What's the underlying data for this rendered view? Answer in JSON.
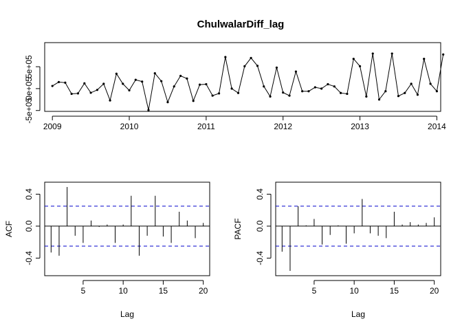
{
  "chart_data": [
    {
      "type": "line",
      "title": "ChulwalarDiff_lag",
      "xlabel": "",
      "ylabel": "",
      "xlim": [
        2008.9,
        2014.05
      ],
      "ylim": [
        -520000,
        1050000
      ],
      "x_ticks": [
        2009,
        2010,
        2011,
        2012,
        2013,
        2014
      ],
      "y_ticks": [
        -500000,
        0,
        500000
      ],
      "y_tick_labels": [
        "-5e+05",
        "0e+05",
        "5e+05"
      ],
      "series": [
        {
          "values": [
            [
              2009.0,
              60000
            ],
            [
              2009.083,
              150000
            ],
            [
              2009.167,
              135000
            ],
            [
              2009.25,
              -120000
            ],
            [
              2009.333,
              -110000
            ],
            [
              2009.417,
              120000
            ],
            [
              2009.5,
              -95000
            ],
            [
              2009.583,
              -30000
            ],
            [
              2009.667,
              110000
            ],
            [
              2009.75,
              -270000
            ],
            [
              2009.833,
              340000
            ],
            [
              2009.917,
              110000
            ],
            [
              2010.0,
              -40000
            ],
            [
              2010.083,
              200000
            ],
            [
              2010.167,
              160000
            ],
            [
              2010.25,
              -490000
            ],
            [
              2010.333,
              350000
            ],
            [
              2010.417,
              170000
            ],
            [
              2010.5,
              -310000
            ],
            [
              2010.583,
              50000
            ],
            [
              2010.667,
              290000
            ],
            [
              2010.75,
              230000
            ],
            [
              2010.833,
              -280000
            ],
            [
              2010.917,
              90000
            ],
            [
              2011.0,
              100000
            ],
            [
              2011.083,
              -160000
            ],
            [
              2011.167,
              -110000
            ],
            [
              2011.25,
              720000
            ],
            [
              2011.333,
              0
            ],
            [
              2011.417,
              -100000
            ],
            [
              2011.5,
              510000
            ],
            [
              2011.583,
              700000
            ],
            [
              2011.667,
              520000
            ],
            [
              2011.75,
              50000
            ],
            [
              2011.833,
              -180000
            ],
            [
              2011.917,
              480000
            ],
            [
              2012.0,
              -90000
            ],
            [
              2012.083,
              -160000
            ],
            [
              2012.167,
              390000
            ],
            [
              2012.25,
              -60000
            ],
            [
              2012.333,
              -60000
            ],
            [
              2012.417,
              30000
            ],
            [
              2012.5,
              0
            ],
            [
              2012.583,
              100000
            ],
            [
              2012.667,
              50000
            ],
            [
              2012.75,
              -100000
            ],
            [
              2012.833,
              -120000
            ],
            [
              2012.917,
              680000
            ],
            [
              2013.0,
              510000
            ],
            [
              2013.083,
              -180000
            ],
            [
              2013.167,
              800000
            ],
            [
              2013.25,
              -250000
            ],
            [
              2013.333,
              -60000
            ],
            [
              2013.417,
              800000
            ],
            [
              2013.5,
              -170000
            ],
            [
              2013.583,
              -100000
            ],
            [
              2013.667,
              110000
            ],
            [
              2013.75,
              -140000
            ],
            [
              2013.833,
              680000
            ],
            [
              2013.917,
              110000
            ],
            [
              2014.0,
              -60000
            ],
            [
              2014.083,
              780000
            ]
          ]
        }
      ]
    },
    {
      "type": "bar",
      "title": "",
      "xlabel": "Lag",
      "ylabel": "ACF",
      "xlim": [
        0.2,
        20.8
      ],
      "ylim": [
        -0.62,
        0.55
      ],
      "x_ticks": [
        5,
        10,
        15,
        20
      ],
      "y_ticks": [
        -0.4,
        0.0,
        0.4
      ],
      "y_tick_labels": [
        "-0.4",
        "0.0",
        "0.4"
      ],
      "ci": 0.25,
      "lags": [
        1,
        2,
        3,
        4,
        5,
        6,
        7,
        8,
        9,
        10,
        11,
        12,
        13,
        14,
        15,
        16,
        17,
        18,
        19,
        20
      ],
      "values": [
        -0.33,
        -0.37,
        0.49,
        -0.12,
        -0.21,
        0.07,
        -0.01,
        0.02,
        -0.21,
        0.02,
        0.38,
        -0.37,
        -0.12,
        0.38,
        -0.13,
        -0.21,
        0.18,
        0.07,
        -0.15,
        0.04
      ]
    },
    {
      "type": "bar",
      "title": "",
      "xlabel": "Lag",
      "ylabel": "PACF",
      "xlim": [
        0.2,
        20.8
      ],
      "ylim": [
        -0.62,
        0.55
      ],
      "x_ticks": [
        5,
        10,
        15,
        20
      ],
      "y_ticks": [
        -0.4,
        0.0,
        0.4
      ],
      "y_tick_labels": [
        "-0.4",
        "0.0",
        "0.4"
      ],
      "ci": 0.25,
      "lags": [
        1,
        2,
        3,
        4,
        5,
        6,
        7,
        8,
        9,
        10,
        11,
        12,
        13,
        14,
        15,
        16,
        17,
        18,
        19,
        20
      ],
      "values": [
        -0.32,
        -0.56,
        0.25,
        0.01,
        0.09,
        -0.23,
        -0.11,
        0.01,
        -0.22,
        -0.09,
        0.34,
        -0.09,
        -0.12,
        -0.15,
        0.18,
        0.02,
        0.05,
        0.02,
        0.04,
        0.11
      ]
    }
  ]
}
